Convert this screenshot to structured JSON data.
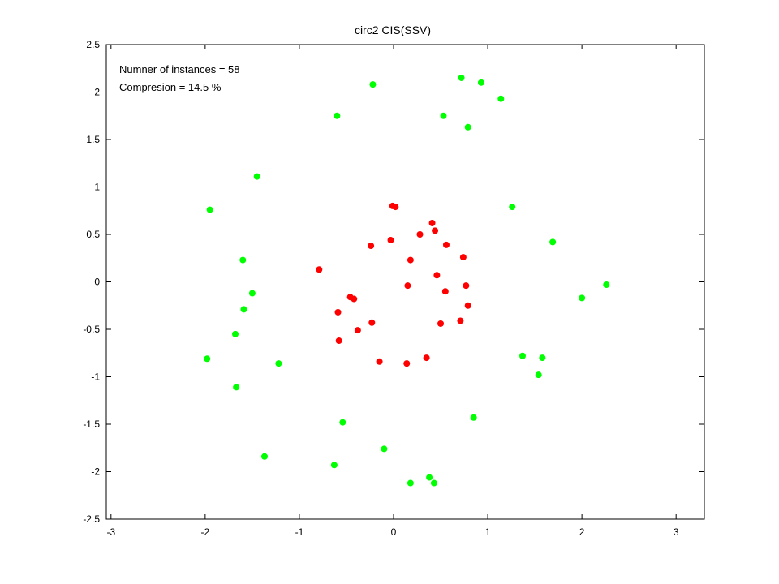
{
  "figure": {
    "title": "circ2 CIS(SSV)",
    "annotations": [
      "Numner of instances = 58",
      "Compresion = 14.5 %"
    ]
  },
  "chart_data": {
    "type": "scatter",
    "title": "circ2 CIS(SSV)",
    "xlabel": "",
    "ylabel": "",
    "xlim": [
      -3.05,
      3.3
    ],
    "ylim": [
      -2.5,
      2.5
    ],
    "xticks": [
      -3,
      -2,
      -1,
      0,
      1,
      2,
      3
    ],
    "yticks": [
      -2.5,
      -2,
      -1.5,
      -1,
      -0.5,
      0,
      0.5,
      1,
      1.5,
      2,
      2.5
    ],
    "grid": false,
    "series": [
      {
        "color": "#ff0000",
        "points": [
          [
            -0.01,
            0.8
          ],
          [
            0.02,
            0.79
          ],
          [
            0.41,
            0.62
          ],
          [
            0.44,
            0.54
          ],
          [
            0.28,
            0.5
          ],
          [
            -0.03,
            0.44
          ],
          [
            0.56,
            0.39
          ],
          [
            -0.24,
            0.38
          ],
          [
            0.74,
            0.26
          ],
          [
            0.18,
            0.23
          ],
          [
            -0.79,
            0.13
          ],
          [
            0.46,
            0.07
          ],
          [
            0.15,
            -0.04
          ],
          [
            0.77,
            -0.04
          ],
          [
            0.55,
            -0.1
          ],
          [
            -0.46,
            -0.16
          ],
          [
            -0.42,
            -0.18
          ],
          [
            0.79,
            -0.25
          ],
          [
            -0.59,
            -0.32
          ],
          [
            0.71,
            -0.41
          ],
          [
            -0.23,
            -0.43
          ],
          [
            0.5,
            -0.44
          ],
          [
            -0.38,
            -0.51
          ],
          [
            -0.58,
            -0.62
          ],
          [
            0.35,
            -0.8
          ],
          [
            -0.15,
            -0.84
          ],
          [
            0.14,
            -0.86
          ]
        ]
      },
      {
        "color": "#00ff00",
        "points": [
          [
            0.72,
            2.15
          ],
          [
            0.93,
            2.1
          ],
          [
            -0.22,
            2.08
          ],
          [
            1.14,
            1.93
          ],
          [
            0.53,
            1.75
          ],
          [
            -0.6,
            1.75
          ],
          [
            0.79,
            1.63
          ],
          [
            -1.45,
            1.11
          ],
          [
            1.26,
            0.79
          ],
          [
            -1.95,
            0.76
          ],
          [
            1.69,
            0.42
          ],
          [
            -1.6,
            0.23
          ],
          [
            2.26,
            -0.03
          ],
          [
            -1.5,
            -0.12
          ],
          [
            2.0,
            -0.17
          ],
          [
            -1.59,
            -0.29
          ],
          [
            -1.68,
            -0.55
          ],
          [
            -1.98,
            -0.81
          ],
          [
            1.37,
            -0.78
          ],
          [
            1.58,
            -0.8
          ],
          [
            -1.22,
            -0.86
          ],
          [
            1.54,
            -0.98
          ],
          [
            -1.67,
            -1.11
          ],
          [
            0.85,
            -1.43
          ],
          [
            -0.54,
            -1.48
          ],
          [
            -0.1,
            -1.76
          ],
          [
            -1.37,
            -1.84
          ],
          [
            -0.63,
            -1.93
          ],
          [
            0.38,
            -2.06
          ],
          [
            0.18,
            -2.12
          ],
          [
            0.43,
            -2.12
          ]
        ]
      }
    ]
  }
}
